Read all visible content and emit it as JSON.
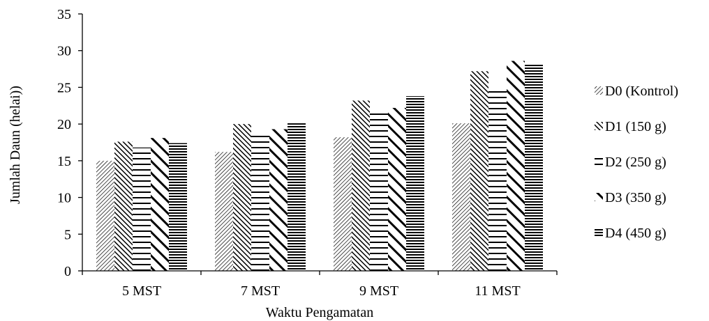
{
  "chart_data": {
    "type": "bar",
    "title": "",
    "xlabel": "Waktu Pengamatan",
    "ylabel": "Jumlah Daun (helai))",
    "ylim": [
      0,
      35
    ],
    "yticks": [
      "0",
      "5",
      "10",
      "15",
      "20",
      "25",
      "30",
      "35"
    ],
    "categories": [
      "5 MST",
      "7 MST",
      "9 MST",
      "11 MST"
    ],
    "series": [
      {
        "name": "D0 (Kontrol)",
        "values": [
          15.0,
          16.2,
          18.2,
          20.1
        ],
        "pattern": "diag-fine"
      },
      {
        "name": "D1 (150 g)",
        "values": [
          17.6,
          20.0,
          23.2,
          27.2
        ],
        "pattern": "diag-dense"
      },
      {
        "name": "D2 (250 g)",
        "values": [
          16.8,
          18.5,
          21.7,
          25.0
        ],
        "pattern": "horiz-wide"
      },
      {
        "name": "D3 (350 g)",
        "values": [
          18.1,
          19.3,
          22.2,
          28.6
        ],
        "pattern": "diag-bold"
      },
      {
        "name": "D4 (450 g)",
        "values": [
          17.4,
          20.1,
          23.8,
          28.2
        ],
        "pattern": "horiz-dense"
      }
    ],
    "legend_position": "right",
    "grid": false,
    "colors": {
      "ink": "#000000",
      "background": "#ffffff"
    }
  }
}
